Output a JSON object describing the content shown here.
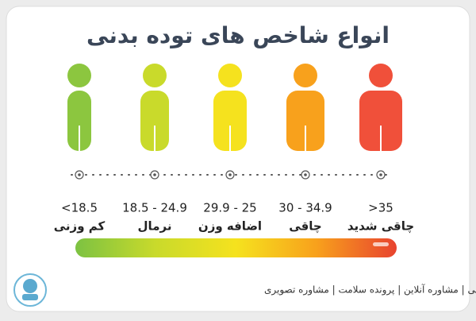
{
  "title": "انواع شاخص های توده بدنی",
  "categories": [
    {
      "range": "<18.5",
      "name": "کم وزنی",
      "color": "#8cc63f"
    },
    {
      "range": "18.5 - 24.9",
      "name": "نرمال",
      "color": "#c9da2b"
    },
    {
      "range": "29.9 - 25",
      "name": "اضافه وزن",
      "color": "#f5e21e"
    },
    {
      "range": "30 - 34.9",
      "name": "چاقی",
      "color": "#f8a11c"
    },
    {
      "range": ">35",
      "name": "چاقی شدید",
      "color": "#f0503a"
    }
  ],
  "footer": "نوبت دهی | مشاوره آنلاین | پرونده سلامت | مشاوره تصویری"
}
